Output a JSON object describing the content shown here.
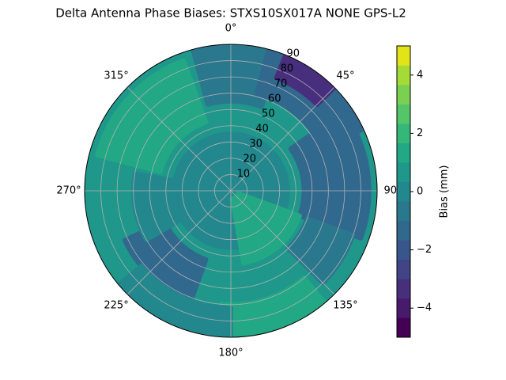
{
  "chart_data": {
    "type": "polar-contour",
    "title": "Delta Antenna Phase Biases: STXS10SX017A    NONE GPS-L2",
    "colorbar_label": "Bias (mm)",
    "rlim": [
      0,
      90
    ],
    "rticks": [
      10,
      20,
      30,
      40,
      50,
      60,
      70,
      80,
      90
    ],
    "azticks": [
      {
        "value": 0,
        "label": "0°"
      },
      {
        "value": 45,
        "label": "45°"
      },
      {
        "value": 90,
        "label": "90°"
      },
      {
        "value": 135,
        "label": "135°"
      },
      {
        "value": 180,
        "label": "180°"
      },
      {
        "value": 225,
        "label": "225°"
      },
      {
        "value": 270,
        "label": "270°"
      },
      {
        "value": 315,
        "label": "315°"
      }
    ],
    "clim": [
      -5,
      5
    ],
    "cticks": [
      {
        "value": -4,
        "label": "−4"
      },
      {
        "value": -2,
        "label": "−2"
      },
      0,
      2,
      4
    ],
    "levels": [
      -5,
      -4.333,
      -3.667,
      -3,
      -2.333,
      -1.667,
      -1,
      -0.333,
      0.333,
      1,
      1.667,
      2.333,
      3,
      3.667,
      4.333,
      5
    ],
    "colors": [
      "#440154",
      "#481a6c",
      "#472f7d",
      "#414487",
      "#39568c",
      "#31688e",
      "#2a788e",
      "#23888e",
      "#1f988b",
      "#22a884",
      "#35b779",
      "#54c568",
      "#7ad151",
      "#a5db36",
      "#e2e418"
    ],
    "grid": true,
    "patches": [
      {
        "az": [
          0,
          360
        ],
        "zen": [
          0,
          90
        ],
        "value": 0.7
      },
      {
        "az": [
          0,
          360
        ],
        "zen": [
          0,
          35
        ],
        "value": 0
      },
      {
        "az": [
          345,
          380
        ],
        "zen": [
          55,
          90
        ],
        "value": -0.7
      },
      {
        "az": [
          15,
          65
        ],
        "zen": [
          62,
          90
        ],
        "value": -1.3
      },
      {
        "az": [
          22,
          45
        ],
        "zen": [
          75,
          90
        ],
        "value": -3.3
      },
      {
        "az": [
          55,
          110
        ],
        "zen": [
          45,
          85
        ],
        "value": -1.3
      },
      {
        "az": [
          110,
          135
        ],
        "zen": [
          50,
          80
        ],
        "value": -0.7
      },
      {
        "az": [
          285,
          340
        ],
        "zen": [
          45,
          85
        ],
        "value": 1.3
      },
      {
        "az": [
          110,
          170
        ],
        "zen": [
          5,
          45
        ],
        "value": 1.3
      },
      {
        "az": [
          200,
          245
        ],
        "zen": [
          45,
          72
        ],
        "value": -1.3
      },
      {
        "az": [
          140,
          185
        ],
        "zen": [
          70,
          90
        ],
        "value": 1.3
      },
      {
        "az": [
          180,
          230
        ],
        "zen": [
          72,
          90
        ],
        "value": 0
      },
      {
        "az": [
          240,
          280
        ],
        "zen": [
          30,
          60
        ],
        "value": 0
      }
    ]
  }
}
